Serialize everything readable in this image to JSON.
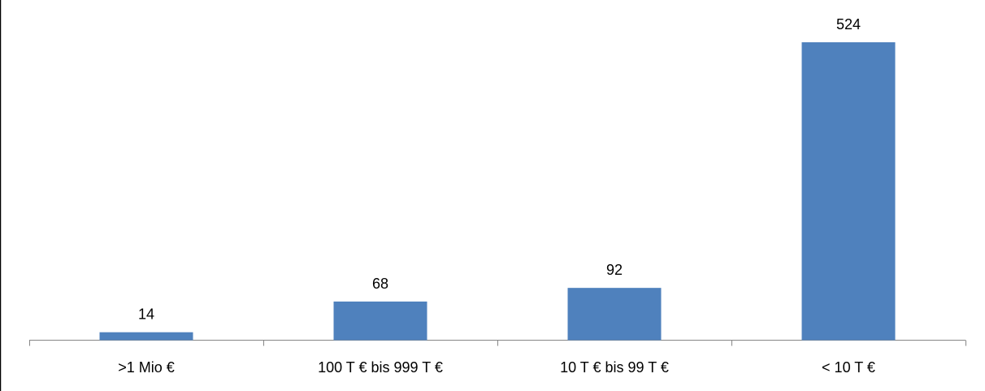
{
  "chart_data": {
    "type": "bar",
    "categories": [
      ">1 Mio €",
      "100 T € bis 999 T €",
      "10 T € bis 99 T €",
      "< 10 T €"
    ],
    "values": [
      14,
      68,
      92,
      524
    ],
    "data_labels": [
      "14",
      "68",
      "92",
      "524"
    ],
    "title": "",
    "xlabel": "",
    "ylabel": "",
    "ylim": [
      0,
      600
    ],
    "grid": false,
    "legend": "none",
    "bar_color": "#4F81BD"
  }
}
